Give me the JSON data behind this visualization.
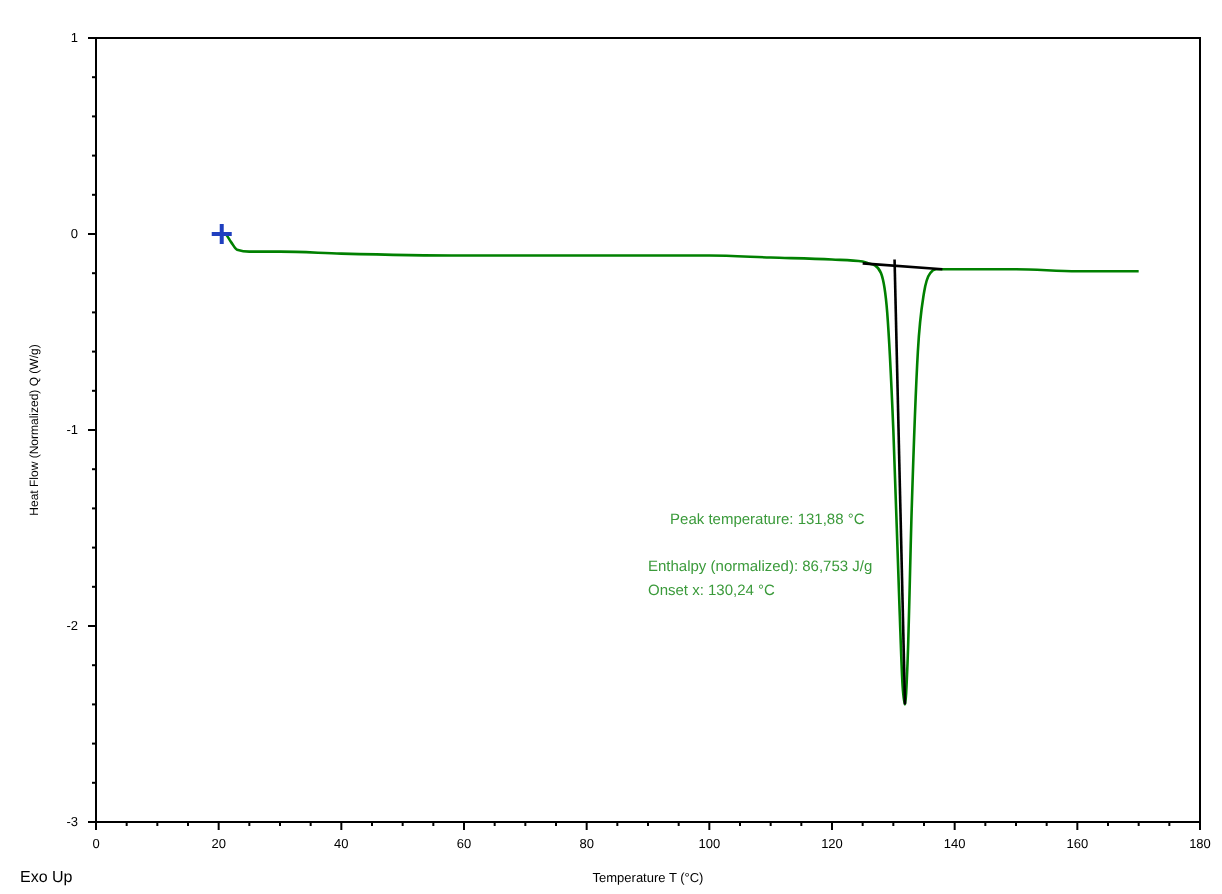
{
  "chart_data": {
    "type": "line",
    "xlabel": "Temperature  T (°C)",
    "ylabel": "Heat Flow (Normalized)  Q (W/g)",
    "annotations": [
      "Peak temperature: 131,88 °C",
      "Enthalpy (normalized): 86,753 J/g",
      "Onset x: 130,24 °C",
      "Exo Up"
    ],
    "xlim": [
      0,
      180
    ],
    "ylim": [
      -3,
      1
    ],
    "xticks": [
      0,
      {
        "value": 5,
        "label": null
      },
      {
        "value": 10,
        "label": null
      },
      {
        "value": 15,
        "label": null
      },
      20,
      {
        "value": 25,
        "label": null
      },
      {
        "value": 30,
        "label": null
      },
      {
        "value": 35,
        "label": null
      },
      40,
      {
        "value": 45,
        "label": null
      },
      {
        "value": 50,
        "label": null
      },
      {
        "value": 55,
        "label": null
      },
      60,
      {
        "value": 65,
        "label": null
      },
      {
        "value": 70,
        "label": null
      },
      {
        "value": 75,
        "label": null
      },
      80,
      {
        "value": 85,
        "label": null
      },
      {
        "value": 90,
        "label": null
      },
      {
        "value": 95,
        "label": null
      },
      100,
      {
        "value": 105,
        "label": null
      },
      {
        "value": 110,
        "label": null
      },
      {
        "value": 115,
        "label": null
      },
      120,
      {
        "value": 125,
        "label": null
      },
      {
        "value": 130,
        "label": null
      },
      {
        "value": 135,
        "label": null
      },
      140,
      {
        "value": 145,
        "label": null
      },
      {
        "value": 150,
        "label": null
      },
      {
        "value": 155,
        "label": null
      },
      160,
      {
        "value": 165,
        "label": null
      },
      {
        "value": 170,
        "label": null
      },
      {
        "value": 175,
        "label": null
      },
      180
    ],
    "yticks": [
      -3,
      {
        "value": -2.8,
        "label": null
      },
      {
        "value": -2.6,
        "label": null
      },
      {
        "value": -2.4,
        "label": null
      },
      {
        "value": -2.2,
        "label": null
      },
      -2,
      {
        "value": -1.8,
        "label": null
      },
      {
        "value": -1.6,
        "label": null
      },
      {
        "value": -1.4,
        "label": null
      },
      {
        "value": -1.2,
        "label": null
      },
      -1,
      {
        "value": -0.8,
        "label": null
      },
      {
        "value": -0.6,
        "label": null
      },
      {
        "value": -0.4,
        "label": null
      },
      {
        "value": -0.2,
        "label": null
      },
      0,
      {
        "value": 0.2,
        "label": null
      },
      {
        "value": 0.4,
        "label": null
      },
      {
        "value": 0.6,
        "label": null
      },
      {
        "value": 0.8,
        "label": null
      },
      1
    ],
    "grid": false,
    "series": [
      {
        "color": "#008000",
        "x": [
          20,
          21,
          22,
          23,
          25,
          30,
          40,
          60,
          80,
          100,
          110,
          120,
          125,
          126,
          127,
          128,
          129,
          130,
          131,
          131.5,
          131.9,
          132.3,
          133,
          134,
          135,
          136,
          137,
          138,
          140,
          150,
          160,
          170
        ],
        "values": [
          0,
          0,
          -0.04,
          -0.08,
          -0.09,
          -0.09,
          -0.1,
          -0.11,
          -0.11,
          -0.11,
          -0.12,
          -0.13,
          -0.14,
          -0.15,
          -0.16,
          -0.2,
          -0.4,
          -1.0,
          -1.9,
          -2.3,
          -2.4,
          -2.2,
          -1.4,
          -0.6,
          -0.3,
          -0.2,
          -0.18,
          -0.18,
          -0.18,
          -0.18,
          -0.19,
          -0.19
        ]
      },
      {
        "color": "#000000",
        "x": [
          125,
          138
        ],
        "values": [
          -0.15,
          -0.18
        ]
      },
      {
        "color": "#000000",
        "x": [
          130.2,
          131.9
        ],
        "values": [
          -0.13,
          -2.4
        ]
      },
      {
        "type": "scatter",
        "marker": "cross",
        "color": "#1f3fbf",
        "x": [
          20.5
        ],
        "values": [
          0
        ]
      }
    ]
  }
}
